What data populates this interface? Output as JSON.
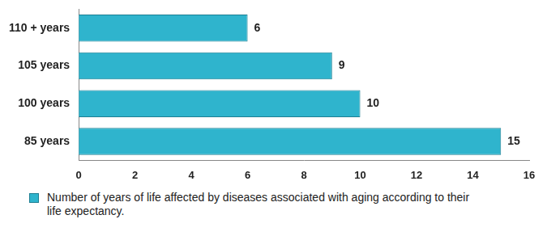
{
  "chart_data": {
    "type": "bar",
    "orientation": "horizontal",
    "categories": [
      "110 + years",
      "105 years",
      "100 years",
      "85 years"
    ],
    "series": [
      {
        "name": "Number of years of life affected by diseases associated with aging according to their life expectancy.",
        "color": "#2fb4cd",
        "values": [
          6,
          9,
          10,
          15
        ]
      }
    ],
    "xlim": [
      0,
      16
    ],
    "xticks": [
      0,
      2,
      4,
      6,
      8,
      10,
      12,
      14,
      16
    ],
    "grid": false,
    "data_labels": true,
    "legend": "bottom"
  }
}
